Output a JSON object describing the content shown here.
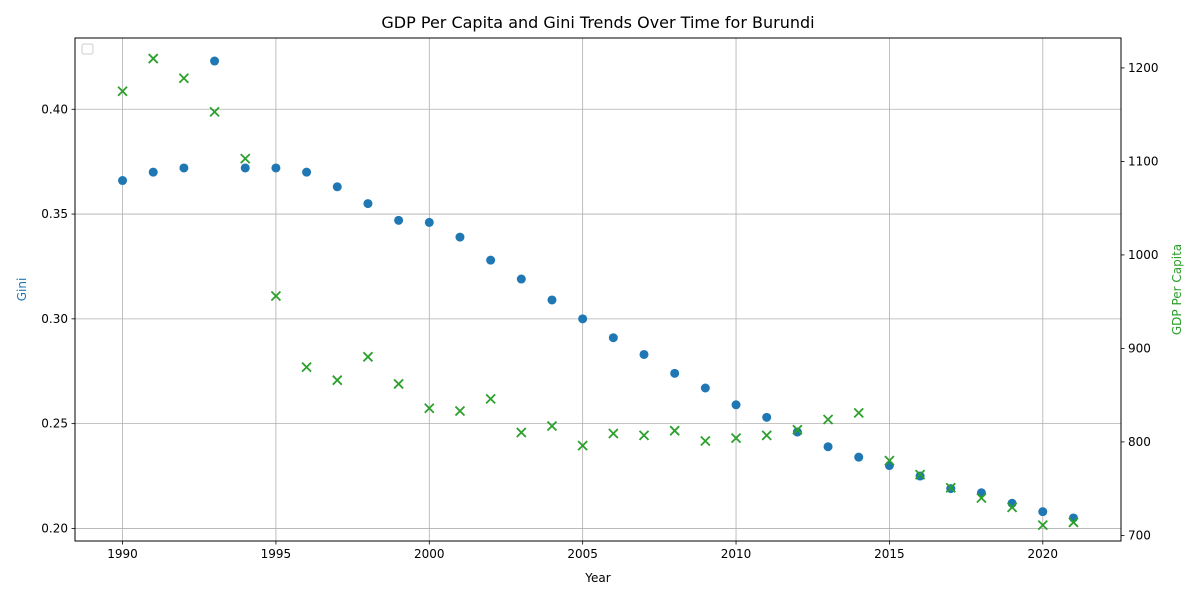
{
  "chart_data": {
    "type": "scatter",
    "title": "GDP Per Capita and Gini Trends Over Time for Burundi",
    "xlabel": "Year",
    "ylabel_left": "Gini",
    "ylabel_right": "GDP Per Capita",
    "xlim": [
      1988.45,
      2022.55
    ],
    "ylim_left": [
      0.194,
      0.434
    ],
    "ylim_right": [
      694,
      1232
    ],
    "x_ticks": [
      1990,
      1995,
      2000,
      2005,
      2010,
      2015,
      2020
    ],
    "y_left_ticks": [
      0.2,
      0.25,
      0.3,
      0.35,
      0.4
    ],
    "y_left_tick_labels": [
      "0.20",
      "0.25",
      "0.30",
      "0.35",
      "0.40"
    ],
    "y_right_ticks": [
      700,
      800,
      900,
      1000,
      1100,
      1200
    ],
    "grid": true,
    "legend": "top-left (empty)",
    "x": [
      1990,
      1991,
      1992,
      1993,
      1994,
      1995,
      1996,
      1997,
      1998,
      1999,
      2000,
      2001,
      2002,
      2003,
      2004,
      2005,
      2006,
      2007,
      2008,
      2009,
      2010,
      2011,
      2012,
      2013,
      2014,
      2015,
      2016,
      2017,
      2018,
      2019,
      2020,
      2021
    ],
    "series": [
      {
        "axis": "left",
        "marker": "circle",
        "color": "#1f77b4",
        "values": [
          0.366,
          0.37,
          0.372,
          0.423,
          0.372,
          0.372,
          0.37,
          0.363,
          0.355,
          0.347,
          0.346,
          0.339,
          0.328,
          0.319,
          0.309,
          0.3,
          0.291,
          0.283,
          0.274,
          0.267,
          0.259,
          0.253,
          0.246,
          0.239,
          0.234,
          0.23,
          0.225,
          0.219,
          0.217,
          0.212,
          0.208,
          0.205
        ]
      },
      {
        "axis": "right",
        "marker": "x",
        "color": "#2ca02c",
        "values": [
          1175,
          1210,
          1189,
          1153,
          1103,
          956,
          880,
          866,
          891,
          862,
          836,
          833,
          846,
          810,
          817,
          796,
          809,
          807,
          812,
          801,
          804,
          807,
          813,
          824,
          831,
          780,
          765,
          751,
          740,
          730,
          711,
          714
        ]
      }
    ]
  }
}
